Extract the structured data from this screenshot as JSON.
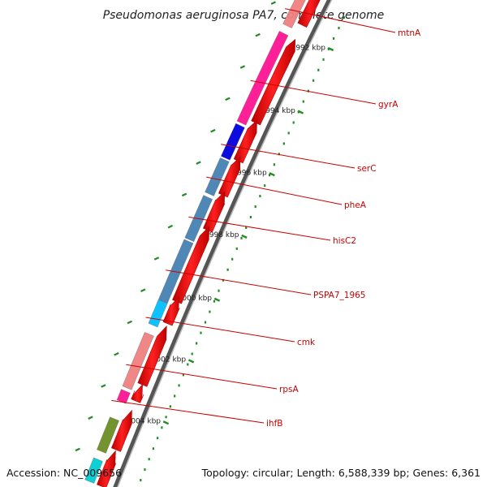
{
  "title": "Pseudomonas aeruginosa PA7, complete genome",
  "scale_labels": [
    "1992 kbp",
    "1994 kbp",
    "1996 kbp",
    "1998 kbp",
    "2000 kbp",
    "2002 kbp",
    "2004 kbp"
  ],
  "genes": [
    {
      "name": "mtnA",
      "color": "#f08080"
    },
    {
      "name": "gyrA",
      "color": "#ff1493"
    },
    {
      "name": "serC",
      "color": "#0000dd"
    },
    {
      "name": "pheA",
      "color": "#4682b4"
    },
    {
      "name": "hisC2",
      "color": "#4682b4"
    },
    {
      "name": "PSPA7_1965",
      "color": "#4682b4"
    },
    {
      "name": "cmk",
      "color": "#00bfff"
    },
    {
      "name": "rpsA",
      "color": "#f08080"
    },
    {
      "name": "ihfB",
      "color": "#ff1493"
    }
  ],
  "colors": {
    "backbone": "#555555",
    "forward_strand": "#ff0000",
    "ticks": "#228b22",
    "labels": "#cc0000",
    "olive_gene": "#6b8e23",
    "cyan_gene": "#00ced1"
  },
  "footer": {
    "accession": "Accession: NC_009656",
    "topology": "Topology: circular; Length: 6,588,339 bp; Genes: 6,361"
  }
}
